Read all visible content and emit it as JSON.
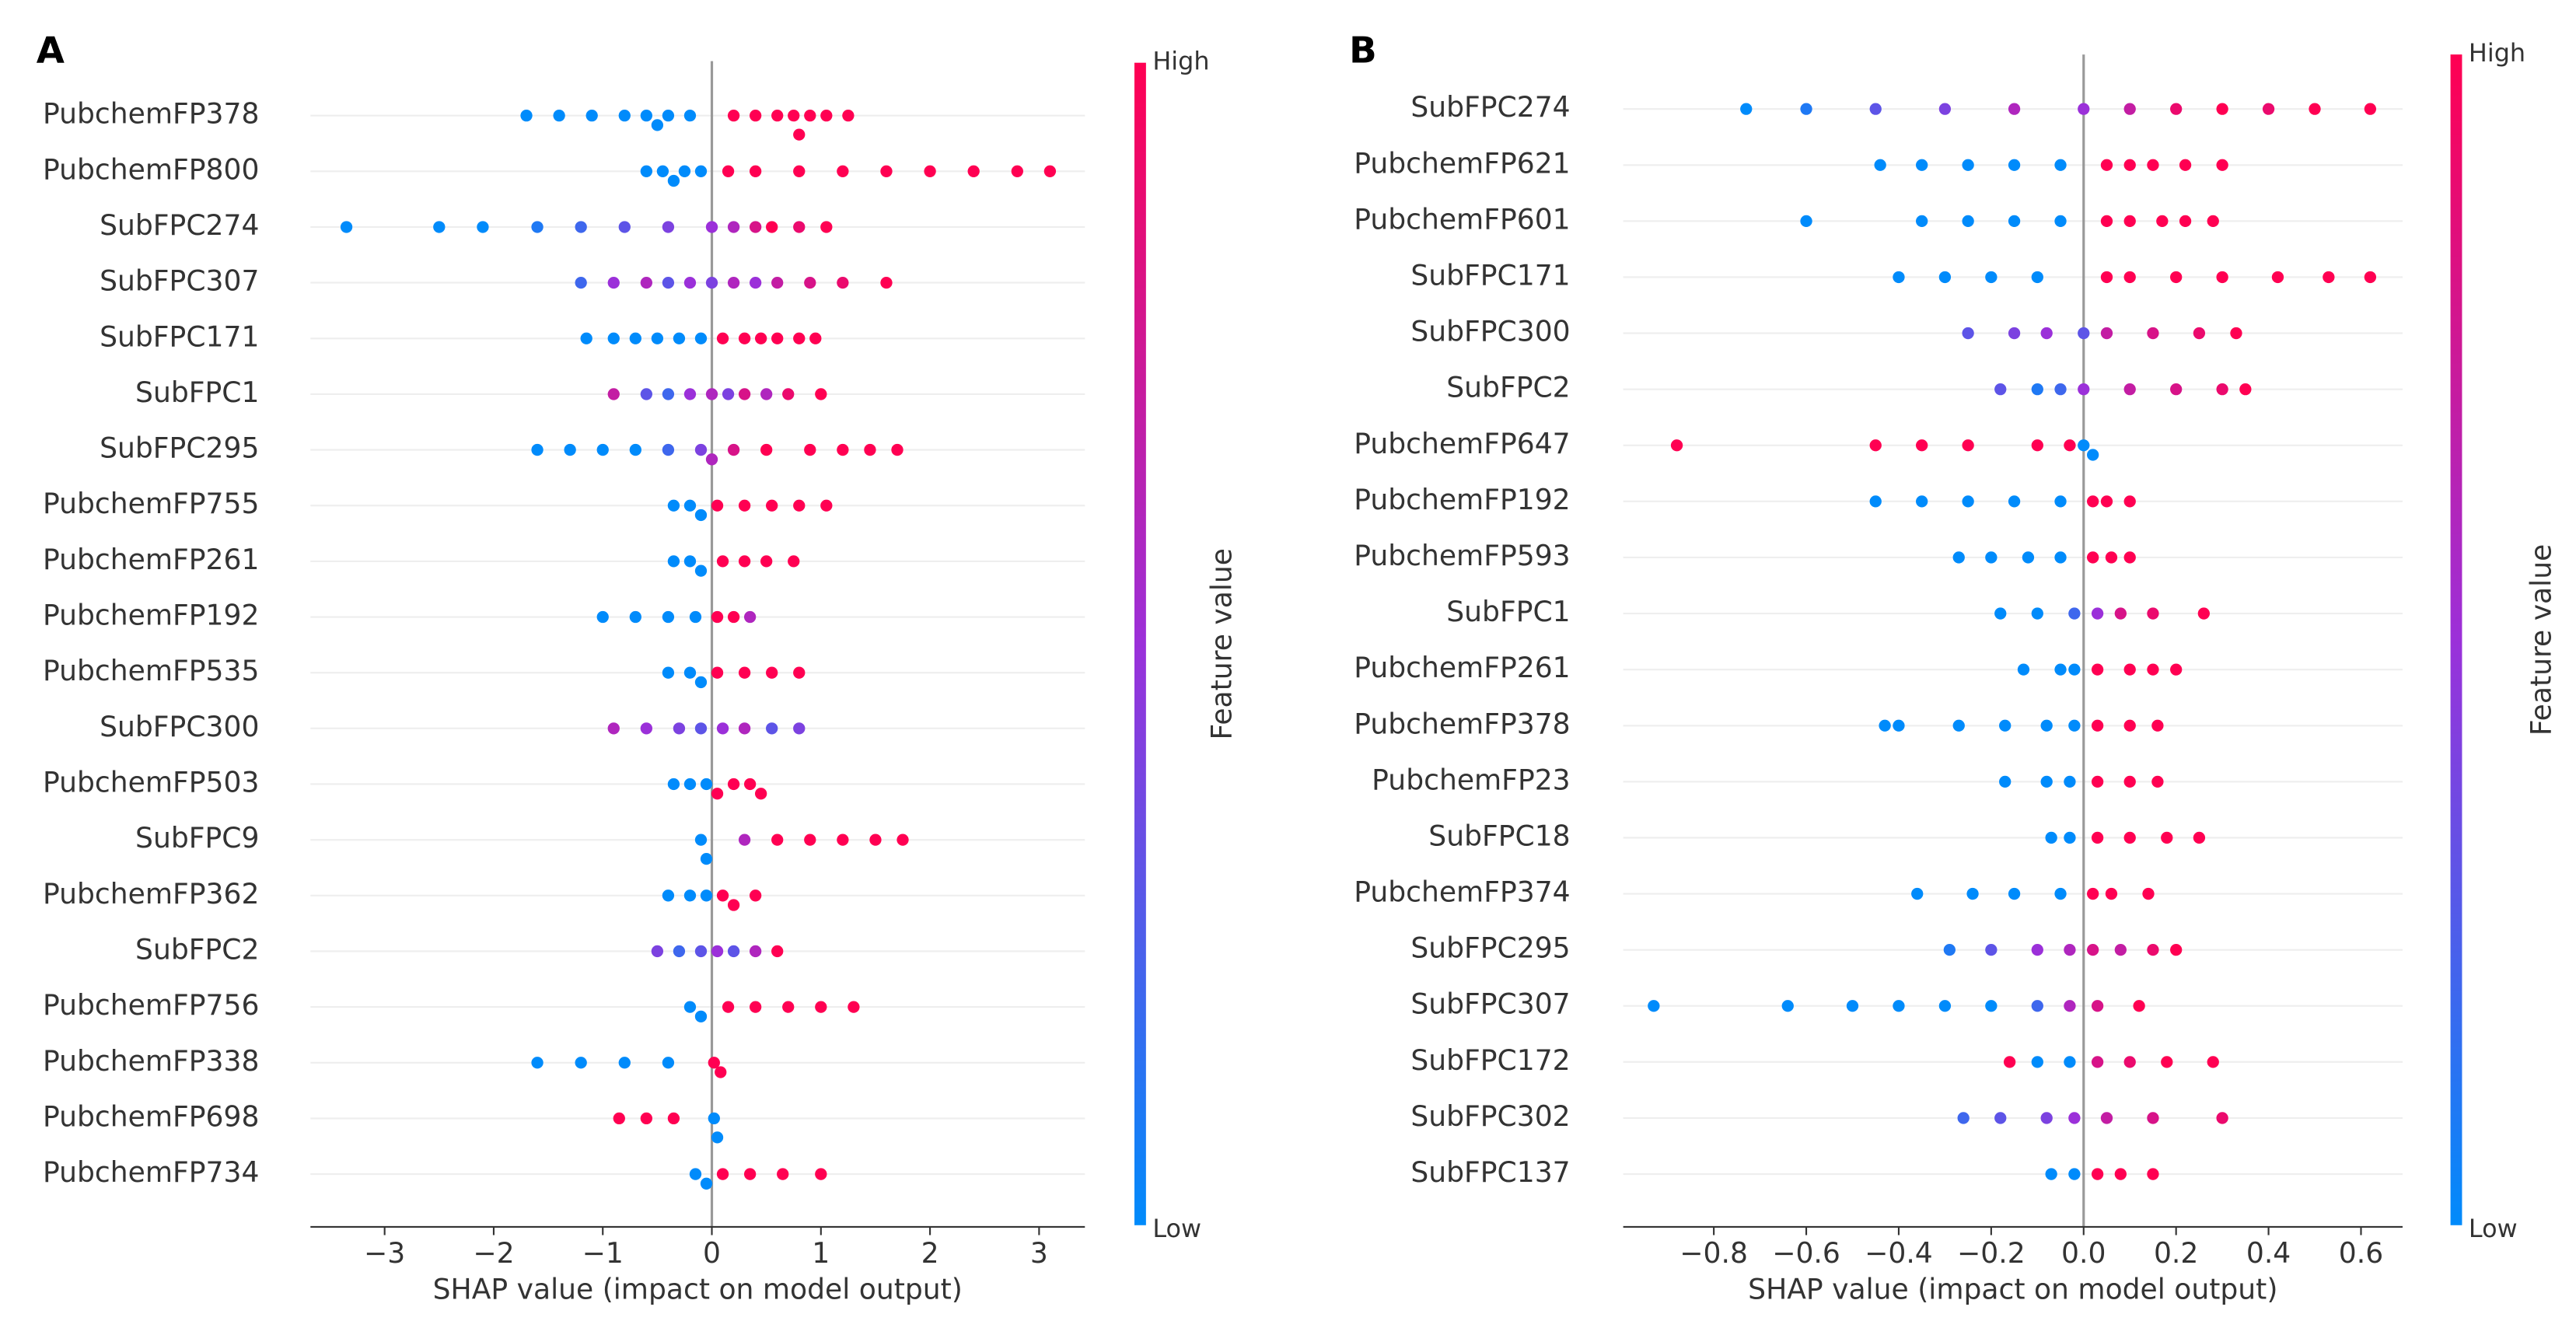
{
  "chart_data": [
    {
      "type": "beeswarm",
      "panel": "A",
      "xlabel": "SHAP value (impact on model output)",
      "colorbar_label": "Feature value",
      "colorbar_high": "High",
      "colorbar_low": "Low",
      "colormap": [
        "#008bfb",
        "#9b30d9",
        "#ff0052"
      ],
      "xlim": [
        -3.68,
        3.42
      ],
      "xticks": [
        {
          "value": -3,
          "label": "−3"
        },
        {
          "value": -2,
          "label": "−2"
        },
        {
          "value": -1,
          "label": "−1"
        },
        0,
        1,
        2,
        3
      ],
      "series": [
        {
          "name": "PubchemFP378",
          "values": [
            -1.7,
            -1.4,
            -1.1,
            -0.8,
            -0.6,
            -0.5,
            -0.4,
            -0.2,
            0.2,
            0.4,
            0.6,
            0.75,
            0.8,
            0.9,
            1.05,
            1.25
          ],
          "feature_values": [
            0,
            0,
            0,
            0,
            0,
            0,
            0,
            0,
            1,
            1,
            1,
            1,
            1,
            1,
            1,
            1
          ]
        },
        {
          "name": "PubchemFP800",
          "values": [
            -0.6,
            -0.45,
            -0.35,
            -0.25,
            -0.1,
            0.15,
            0.4,
            0.8,
            1.2,
            1.6,
            2.0,
            2.4,
            2.8,
            3.1
          ],
          "feature_values": [
            0,
            0,
            0,
            0,
            0,
            1,
            1,
            1,
            1,
            1,
            1,
            1,
            1,
            1
          ]
        },
        {
          "name": "SubFPC274",
          "values": [
            -3.35,
            -2.5,
            -2.1,
            -1.6,
            -1.2,
            -0.8,
            -0.4,
            0,
            0.2,
            0.4,
            0.55,
            0.8,
            1.05
          ],
          "feature_values": [
            0,
            0,
            0,
            0.1,
            0.2,
            0.3,
            0.4,
            0.5,
            0.6,
            0.8,
            1,
            0.9,
            1
          ]
        },
        {
          "name": "SubFPC307",
          "values": [
            -1.2,
            -0.9,
            -0.6,
            -0.4,
            -0.2,
            0,
            0.2,
            0.4,
            0.6,
            0.9,
            1.2,
            1.6
          ],
          "feature_values": [
            0.2,
            0.5,
            0.6,
            0.3,
            0.5,
            0.4,
            0.6,
            0.5,
            0.7,
            0.8,
            0.9,
            1
          ]
        },
        {
          "name": "SubFPC171",
          "values": [
            -1.15,
            -0.9,
            -0.7,
            -0.5,
            -0.3,
            -0.1,
            0.1,
            0.3,
            0.45,
            0.6,
            0.8,
            0.95
          ],
          "feature_values": [
            0,
            0,
            0,
            0,
            0,
            0,
            1,
            1,
            1,
            1,
            1,
            1
          ]
        },
        {
          "name": "SubFPC1",
          "values": [
            -0.9,
            -0.6,
            -0.4,
            -0.2,
            0,
            0.15,
            0.3,
            0.5,
            0.7,
            1.0
          ],
          "feature_values": [
            0.7,
            0.3,
            0.2,
            0.5,
            0.6,
            0.4,
            0.8,
            0.6,
            0.9,
            1
          ]
        },
        {
          "name": "SubFPC295",
          "values": [
            -1.6,
            -1.3,
            -1.0,
            -0.7,
            -0.4,
            -0.1,
            0,
            0.2,
            0.5,
            0.9,
            1.2,
            1.45,
            1.7
          ],
          "feature_values": [
            0,
            0,
            0,
            0,
            0.2,
            0.4,
            0.6,
            0.8,
            1,
            1,
            1,
            1,
            1
          ]
        },
        {
          "name": "PubchemFP755",
          "values": [
            -0.35,
            -0.2,
            -0.1,
            0.05,
            0.3,
            0.55,
            0.8,
            1.05
          ],
          "feature_values": [
            0,
            0,
            0,
            1,
            1,
            1,
            1,
            1
          ]
        },
        {
          "name": "PubchemFP261",
          "values": [
            -0.35,
            -0.2,
            -0.1,
            0.1,
            0.3,
            0.5,
            0.75
          ],
          "feature_values": [
            0,
            0,
            0,
            1,
            1,
            1,
            1
          ]
        },
        {
          "name": "PubchemFP192",
          "values": [
            -1.0,
            -0.7,
            -0.4,
            -0.15,
            0.05,
            0.2,
            0.35
          ],
          "feature_values": [
            0,
            0,
            0,
            0,
            1,
            1,
            0.6
          ]
        },
        {
          "name": "PubchemFP535",
          "values": [
            -0.4,
            -0.2,
            -0.1,
            0.05,
            0.3,
            0.55,
            0.8
          ],
          "feature_values": [
            0,
            0,
            0,
            1,
            1,
            1,
            1
          ]
        },
        {
          "name": "SubFPC300",
          "values": [
            -0.9,
            -0.6,
            -0.3,
            -0.1,
            0.1,
            0.3,
            0.55,
            0.8
          ],
          "feature_values": [
            0.6,
            0.5,
            0.4,
            0.3,
            0.5,
            0.6,
            0.3,
            0.4
          ]
        },
        {
          "name": "PubchemFP503",
          "values": [
            -0.35,
            -0.2,
            -0.05,
            0.05,
            0.2,
            0.35,
            0.45
          ],
          "feature_values": [
            0,
            0,
            0,
            1,
            1,
            1,
            1
          ]
        },
        {
          "name": "SubFPC9",
          "values": [
            -0.1,
            -0.05,
            0.3,
            0.6,
            0.9,
            1.2,
            1.5,
            1.75
          ],
          "feature_values": [
            0,
            0,
            0.6,
            1,
            1,
            1,
            1,
            1
          ]
        },
        {
          "name": "PubchemFP362",
          "values": [
            -0.4,
            -0.2,
            -0.05,
            0.1,
            0.2,
            0.4
          ],
          "feature_values": [
            0,
            0,
            0,
            1,
            1,
            1
          ]
        },
        {
          "name": "SubFPC2",
          "values": [
            -0.5,
            -0.3,
            -0.1,
            0.05,
            0.2,
            0.4,
            0.6
          ],
          "feature_values": [
            0.4,
            0.2,
            0.3,
            0.5,
            0.3,
            0.6,
            1
          ]
        },
        {
          "name": "PubchemFP756",
          "values": [
            -0.2,
            -0.1,
            0.15,
            0.4,
            0.7,
            1.0,
            1.3
          ],
          "feature_values": [
            0,
            0,
            1,
            1,
            1,
            1,
            1
          ]
        },
        {
          "name": "PubchemFP338",
          "values": [
            -1.6,
            -1.2,
            -0.8,
            -0.4,
            0.02,
            0.08
          ],
          "feature_values": [
            0,
            0,
            0,
            0,
            1,
            1
          ]
        },
        {
          "name": "PubchemFP698",
          "values": [
            -0.85,
            -0.6,
            -0.35,
            0.02,
            0.05
          ],
          "feature_values": [
            1,
            1,
            1,
            0,
            0
          ]
        },
        {
          "name": "PubchemFP734",
          "values": [
            -0.15,
            -0.05,
            0.1,
            0.35,
            0.65,
            1.0
          ],
          "feature_values": [
            0,
            0,
            1,
            1,
            1,
            1
          ]
        }
      ]
    },
    {
      "type": "beeswarm",
      "panel": "B",
      "xlabel": "SHAP value (impact on model output)",
      "colorbar_label": "Feature value",
      "colorbar_high": "High",
      "colorbar_low": "Low",
      "colormap": [
        "#008bfb",
        "#9b30d9",
        "#ff0052"
      ],
      "xlim": [
        -0.996,
        0.69
      ],
      "xticks": [
        {
          "value": -0.8,
          "label": "−0.8"
        },
        {
          "value": -0.6,
          "label": "−0.6"
        },
        {
          "value": -0.4,
          "label": "−0.4"
        },
        {
          "value": -0.2,
          "label": "−0.2"
        },
        {
          "value": 0,
          "label": "0.0"
        },
        0.2,
        0.4,
        0.6
      ],
      "series": [
        {
          "name": "SubFPC274",
          "values": [
            -0.73,
            -0.6,
            -0.45,
            -0.3,
            -0.15,
            0,
            0.1,
            0.2,
            0.3,
            0.4,
            0.5,
            0.62
          ],
          "feature_values": [
            0,
            0.1,
            0.3,
            0.4,
            0.6,
            0.5,
            0.7,
            0.9,
            1,
            0.9,
            1,
            1
          ]
        },
        {
          "name": "PubchemFP621",
          "values": [
            -0.44,
            -0.35,
            -0.25,
            -0.15,
            -0.05,
            0.05,
            0.1,
            0.15,
            0.22,
            0.3
          ],
          "feature_values": [
            0,
            0,
            0,
            0,
            0,
            1,
            1,
            1,
            1,
            1
          ]
        },
        {
          "name": "PubchemFP601",
          "values": [
            -0.6,
            -0.35,
            -0.25,
            -0.15,
            -0.05,
            0.05,
            0.1,
            0.17,
            0.22,
            0.28
          ],
          "feature_values": [
            0,
            0,
            0,
            0,
            0,
            1,
            1,
            1,
            1,
            1
          ]
        },
        {
          "name": "SubFPC171",
          "values": [
            -0.4,
            -0.3,
            -0.2,
            -0.1,
            0.05,
            0.1,
            0.2,
            0.3,
            0.42,
            0.53,
            0.62
          ],
          "feature_values": [
            0,
            0,
            0,
            0,
            1,
            1,
            1,
            1,
            1,
            1,
            1
          ]
        },
        {
          "name": "SubFPC300",
          "values": [
            -0.25,
            -0.15,
            -0.08,
            0,
            0.05,
            0.15,
            0.25,
            0.33
          ],
          "feature_values": [
            0.3,
            0.4,
            0.5,
            0.3,
            0.7,
            0.8,
            0.9,
            1
          ]
        },
        {
          "name": "SubFPC2",
          "values": [
            -0.18,
            -0.1,
            -0.05,
            0,
            0.1,
            0.2,
            0.3,
            0.35
          ],
          "feature_values": [
            0.3,
            0.1,
            0.2,
            0.5,
            0.7,
            0.8,
            0.9,
            1
          ]
        },
        {
          "name": "PubchemFP647",
          "values": [
            -0.88,
            -0.45,
            -0.35,
            -0.25,
            -0.1,
            -0.03,
            0,
            0.02
          ],
          "feature_values": [
            1,
            1,
            1,
            1,
            1,
            1,
            0,
            0
          ]
        },
        {
          "name": "PubchemFP192",
          "values": [
            -0.45,
            -0.35,
            -0.25,
            -0.15,
            -0.05,
            0.02,
            0.05,
            0.1
          ],
          "feature_values": [
            0,
            0,
            0,
            0,
            0,
            1,
            1,
            1
          ]
        },
        {
          "name": "PubchemFP593",
          "values": [
            -0.27,
            -0.2,
            -0.12,
            -0.05,
            0.02,
            0.06,
            0.1
          ],
          "feature_values": [
            0,
            0,
            0,
            0,
            1,
            1,
            1
          ]
        },
        {
          "name": "SubFPC1",
          "values": [
            -0.18,
            -0.1,
            -0.02,
            0.03,
            0.08,
            0.15,
            0.26
          ],
          "feature_values": [
            0,
            0,
            0.2,
            0.5,
            0.8,
            0.9,
            1
          ]
        },
        {
          "name": "PubchemFP261",
          "values": [
            -0.13,
            -0.05,
            -0.02,
            0.03,
            0.1,
            0.15,
            0.2
          ],
          "feature_values": [
            0,
            0,
            0,
            1,
            1,
            1,
            1
          ]
        },
        {
          "name": "PubchemFP378",
          "values": [
            -0.43,
            -0.4,
            -0.27,
            -0.17,
            -0.08,
            -0.02,
            0.03,
            0.1,
            0.16
          ],
          "feature_values": [
            0,
            0,
            0,
            0,
            0,
            0,
            1,
            1,
            1
          ]
        },
        {
          "name": "PubchemFP23",
          "values": [
            -0.17,
            -0.08,
            -0.03,
            0.03,
            0.1,
            0.16
          ],
          "feature_values": [
            0,
            0,
            0,
            1,
            1,
            1
          ]
        },
        {
          "name": "SubFPC18",
          "values": [
            -0.07,
            -0.03,
            0.03,
            0.1,
            0.18,
            0.25
          ],
          "feature_values": [
            0,
            0,
            1,
            1,
            1,
            1
          ]
        },
        {
          "name": "PubchemFP374",
          "values": [
            -0.36,
            -0.24,
            -0.15,
            -0.05,
            0.02,
            0.06,
            0.14
          ],
          "feature_values": [
            0,
            0,
            0,
            0,
            1,
            1,
            1
          ]
        },
        {
          "name": "SubFPC295",
          "values": [
            -0.29,
            -0.2,
            -0.1,
            -0.03,
            0.02,
            0.08,
            0.15,
            0.2
          ],
          "feature_values": [
            0.1,
            0.3,
            0.5,
            0.6,
            0.8,
            0.7,
            0.9,
            1
          ]
        },
        {
          "name": "SubFPC307",
          "values": [
            -0.93,
            -0.64,
            -0.5,
            -0.4,
            -0.3,
            -0.2,
            -0.1,
            -0.03,
            0.03,
            0.12
          ],
          "feature_values": [
            0,
            0,
            0,
            0,
            0,
            0,
            0.2,
            0.6,
            0.8,
            1
          ]
        },
        {
          "name": "SubFPC172",
          "values": [
            -0.16,
            -0.1,
            -0.03,
            0.03,
            0.1,
            0.18,
            0.28
          ],
          "feature_values": [
            1,
            0,
            0,
            0.8,
            0.9,
            1,
            1
          ]
        },
        {
          "name": "SubFPC302",
          "values": [
            -0.26,
            -0.18,
            -0.08,
            -0.02,
            0.05,
            0.15,
            0.3
          ],
          "feature_values": [
            0.2,
            0.3,
            0.4,
            0.5,
            0.7,
            0.8,
            0.9
          ]
        },
        {
          "name": "SubFPC137",
          "values": [
            -0.07,
            -0.02,
            0.03,
            0.08,
            0.15
          ],
          "feature_values": [
            0,
            0,
            1,
            1,
            1
          ]
        }
      ]
    }
  ]
}
